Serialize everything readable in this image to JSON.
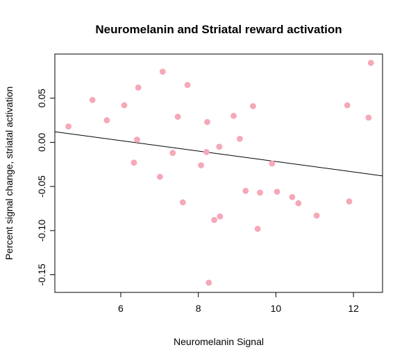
{
  "chart_data": {
    "type": "scatter",
    "title": "Neuromelanin and Striatal reward activation",
    "xlabel": "Neuromelanin Signal",
    "ylabel": "Percent signal change, striatal activation",
    "xlim": [
      4.3,
      12.75
    ],
    "ylim": [
      -0.17,
      0.1
    ],
    "xticks": [
      "6",
      "8",
      "10",
      "12"
    ],
    "xtick_values": [
      6,
      8,
      10,
      12
    ],
    "yticks": [
      "-0.15",
      "-0.10",
      "-0.05",
      "0.00",
      "0.05"
    ],
    "ytick_values": [
      -0.15,
      -0.1,
      -0.05,
      0.0,
      0.05
    ],
    "grid": false,
    "point_color": "#F6A8B8",
    "line_color": "#000000",
    "regression_line": {
      "x": [
        4.3,
        12.75
      ],
      "y": [
        0.012,
        -0.038
      ]
    },
    "points": [
      {
        "x": 4.65,
        "y": 0.018
      },
      {
        "x": 5.27,
        "y": 0.048
      },
      {
        "x": 5.64,
        "y": 0.025
      },
      {
        "x": 6.09,
        "y": 0.042
      },
      {
        "x": 6.34,
        "y": -0.023
      },
      {
        "x": 6.42,
        "y": 0.003
      },
      {
        "x": 6.45,
        "y": 0.062
      },
      {
        "x": 7.01,
        "y": -0.039
      },
      {
        "x": 7.08,
        "y": 0.08
      },
      {
        "x": 7.34,
        "y": -0.012
      },
      {
        "x": 7.47,
        "y": 0.029
      },
      {
        "x": 7.6,
        "y": -0.068
      },
      {
        "x": 7.72,
        "y": 0.065
      },
      {
        "x": 8.07,
        "y": -0.026
      },
      {
        "x": 8.21,
        "y": -0.011
      },
      {
        "x": 8.23,
        "y": 0.023
      },
      {
        "x": 8.27,
        "y": -0.159
      },
      {
        "x": 8.41,
        "y": -0.088
      },
      {
        "x": 8.54,
        "y": -0.005
      },
      {
        "x": 8.56,
        "y": -0.084
      },
      {
        "x": 8.91,
        "y": 0.03
      },
      {
        "x": 9.07,
        "y": 0.004
      },
      {
        "x": 9.22,
        "y": -0.055
      },
      {
        "x": 9.41,
        "y": 0.041
      },
      {
        "x": 9.53,
        "y": -0.098
      },
      {
        "x": 9.59,
        "y": -0.057
      },
      {
        "x": 9.9,
        "y": -0.024
      },
      {
        "x": 10.03,
        "y": -0.056
      },
      {
        "x": 10.42,
        "y": -0.062
      },
      {
        "x": 10.58,
        "y": -0.069
      },
      {
        "x": 11.05,
        "y": -0.083
      },
      {
        "x": 11.84,
        "y": 0.042
      },
      {
        "x": 11.89,
        "y": -0.067
      },
      {
        "x": 12.39,
        "y": 0.028
      },
      {
        "x": 12.45,
        "y": 0.09
      }
    ]
  }
}
